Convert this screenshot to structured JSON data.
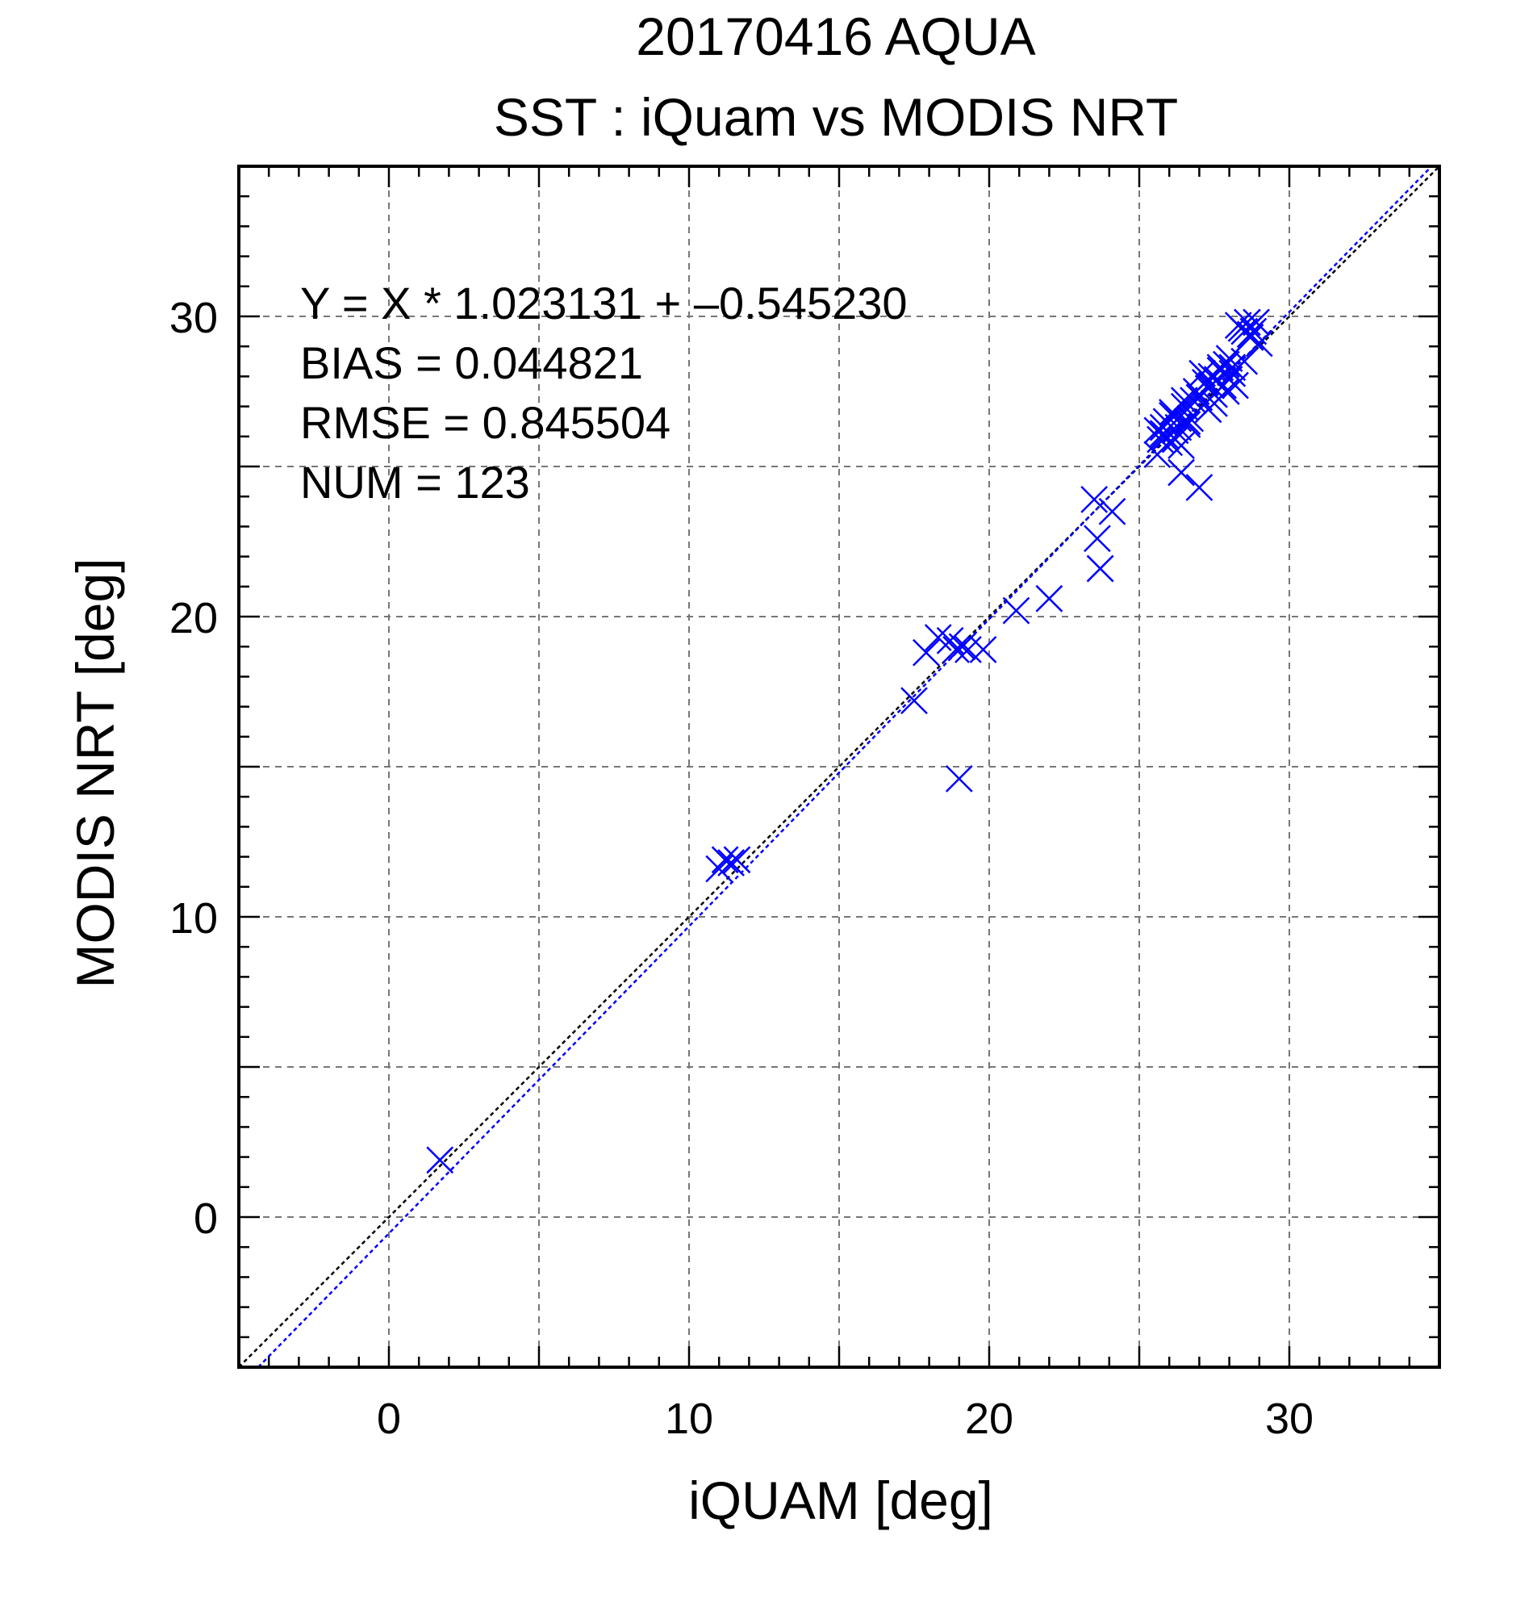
{
  "chart_data": {
    "type": "scatter",
    "title": "20170416 AQUA",
    "subtitle": "SST : iQuam vs MODIS NRT",
    "xlabel": "iQUAM [deg]",
    "ylabel": "MODIS NRT [deg]",
    "xlim": [
      -5,
      35
    ],
    "ylim": [
      -5,
      35
    ],
    "xticks": [
      0,
      10,
      20,
      30
    ],
    "yticks": [
      0,
      10,
      20,
      30
    ],
    "grid": true,
    "stats": [
      "Y = X * 1.023131 + –0.545230",
      "BIAS = 0.044821",
      "RMSE = 0.845504",
      "NUM = 123"
    ],
    "reference_lines": [
      {
        "slope": 1,
        "intercept": 0,
        "color": "#000000",
        "style": "dashed"
      },
      {
        "slope": 1.023131,
        "intercept": -0.54523,
        "color": "#0000ff",
        "style": "dashed"
      }
    ],
    "marker_color": "#0000ff",
    "series": [
      {
        "x": [
          1.7,
          11.0,
          11.2,
          11.4,
          11.6,
          17.5,
          17.9,
          18.3,
          18.7,
          18.9,
          19.1,
          19.3,
          19.8,
          19.0,
          20.9,
          22.0,
          23.5,
          23.6,
          23.7,
          23.7,
          24.1,
          25.6,
          25.7,
          25.8,
          25.9,
          26.0,
          26.1,
          26.2,
          26.3,
          26.4,
          26.5,
          26.6,
          25.9,
          26.1,
          26.3,
          26.5,
          26.7,
          26.9,
          27.0,
          27.2,
          27.3,
          27.4,
          27.5,
          27.6,
          27.7,
          27.8,
          27.9,
          28.0,
          28.1,
          28.2,
          26.4,
          27.0,
          27.3,
          28.3,
          28.5,
          28.6,
          28.7,
          28.9,
          29.0,
          28.5,
          28.4,
          28.7,
          27.5,
          27.7,
          27.9,
          28.0,
          27.1,
          26.8,
          26.2,
          25.8,
          25.6,
          26.6,
          27.4,
          28.1,
          28.8
        ],
        "y": [
          1.9,
          11.6,
          11.9,
          11.8,
          11.9,
          17.2,
          18.8,
          19.3,
          19.2,
          18.9,
          19.0,
          18.9,
          18.9,
          14.6,
          20.2,
          20.6,
          23.9,
          22.6,
          21.6,
          21.6,
          23.5,
          25.4,
          25.9,
          26.3,
          26.5,
          25.8,
          26.7,
          26.2,
          26.6,
          25.7,
          27.0,
          26.4,
          26.0,
          26.8,
          26.3,
          27.2,
          26.6,
          27.5,
          27.3,
          27.8,
          27.6,
          28.0,
          27.4,
          27.9,
          28.2,
          27.7,
          28.4,
          27.9,
          28.1,
          27.7,
          24.8,
          24.3,
          26.9,
          29.7,
          29.5,
          29.8,
          29.3,
          29.8,
          29.1,
          28.5,
          29.6,
          29.4,
          27.1,
          28.3,
          27.5,
          28.6,
          28.1,
          27.2,
          25.9,
          26.1,
          26.2,
          26.5,
          27.7,
          28.3,
          29.5
        ]
      }
    ]
  }
}
